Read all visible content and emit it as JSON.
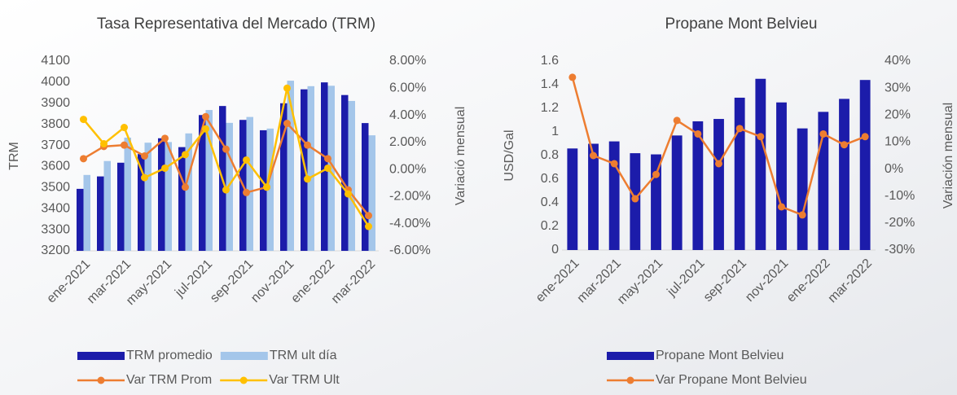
{
  "chart_data": [
    {
      "type": "combo",
      "title": "Tasa Representativa del Mercado (TRM)",
      "ylabel": "TRM",
      "y2label": "Variació mensual",
      "categories": [
        "ene-2021",
        null,
        "mar-2021",
        null,
        "may-2021",
        null,
        "jul-2021",
        null,
        "sep-2021",
        null,
        "nov-2021",
        null,
        "ene-2022",
        null,
        "mar-2022"
      ],
      "ylim": [
        3200,
        4100
      ],
      "yticks": [
        3200,
        3300,
        3400,
        3500,
        3600,
        3700,
        3800,
        3900,
        4000,
        4100
      ],
      "y2lim": [
        -6,
        8
      ],
      "y2ticks": [
        {
          "value": -6,
          "label": "-6.00%"
        },
        {
          "value": -4,
          "label": "-4.00%"
        },
        {
          "value": -2,
          "label": "-2.00%"
        },
        {
          "value": 0,
          "label": "0.00%"
        },
        {
          "value": 2,
          "label": "2.00%"
        },
        {
          "value": 4,
          "label": "4.00%"
        },
        {
          "value": 6,
          "label": "6.00%"
        },
        {
          "value": 8,
          "label": "8.00%"
        }
      ],
      "grid": false,
      "series": [
        {
          "name": "TRM promedio",
          "mark": "bar",
          "color": "#1c1caa",
          "values": [
            3494,
            3553,
            3618,
            3659,
            3734,
            3692,
            3844,
            3887,
            3821,
            3772,
            3900,
            3966,
            3999,
            3939,
            3806
          ]
        },
        {
          "name": "TRM ult día",
          "mark": "bar",
          "color": "#a4c6ea",
          "values": [
            3560,
            3626,
            3737,
            3713,
            3716,
            3757,
            3868,
            3807,
            3835,
            3780,
            4007,
            3981,
            3983,
            3911,
            3748
          ]
        },
        {
          "name": "Var TRM Prom",
          "mark": "line",
          "axis": "y2",
          "color": "#ed7d31",
          "values": [
            0.8,
            1.7,
            1.8,
            1.0,
            2.3,
            -1.3,
            3.9,
            1.5,
            -1.7,
            -1.3,
            3.4,
            1.8,
            0.8,
            -1.5,
            -3.4
          ]
        },
        {
          "name": "Var TRM Ult",
          "mark": "line",
          "axis": "y2",
          "color": "#ffc000",
          "values": [
            3.7,
            1.9,
            3.1,
            -0.6,
            0.1,
            1.1,
            3.0,
            -1.5,
            0.7,
            -1.3,
            6.0,
            -0.7,
            0.1,
            -1.8,
            -4.2
          ]
        }
      ]
    },
    {
      "type": "combo",
      "title": "Propane Mont Belvieu",
      "ylabel": "USD/Gal",
      "y2label": "Variación mensual",
      "categories": [
        "ene-2021",
        null,
        "mar-2021",
        null,
        "may-2021",
        null,
        "jul-2021",
        null,
        "sep-2021",
        null,
        "nov-2021",
        null,
        "ene-2022",
        null,
        "mar-2022"
      ],
      "ylim": [
        0,
        1.6
      ],
      "yticks": [
        0,
        0.2,
        0.4,
        0.6,
        0.8,
        1,
        1.2,
        1.4,
        1.6
      ],
      "y2lim": [
        -30,
        40
      ],
      "y2ticks": [
        {
          "value": -30,
          "label": "-30%"
        },
        {
          "value": -20,
          "label": "-20%"
        },
        {
          "value": -10,
          "label": "-10%"
        },
        {
          "value": 0,
          "label": "0%"
        },
        {
          "value": 10,
          "label": "10%"
        },
        {
          "value": 20,
          "label": "20%"
        },
        {
          "value": 30,
          "label": "30%"
        },
        {
          "value": 40,
          "label": "40%"
        }
      ],
      "grid": false,
      "series": [
        {
          "name": "Propane Mont Belvieu",
          "mark": "bar",
          "color": "#1c1caa",
          "values": [
            0.86,
            0.9,
            0.92,
            0.82,
            0.81,
            0.97,
            1.09,
            1.11,
            1.29,
            1.45,
            1.25,
            1.03,
            1.17,
            1.28,
            1.44
          ]
        },
        {
          "name": "Var Propane Mont Belvieu",
          "mark": "line",
          "axis": "y2",
          "color": "#ed7d31",
          "values": [
            34,
            5,
            2,
            -11,
            -2,
            18,
            13,
            2,
            15,
            12,
            -14,
            -17,
            13,
            9,
            12
          ]
        }
      ]
    }
  ]
}
